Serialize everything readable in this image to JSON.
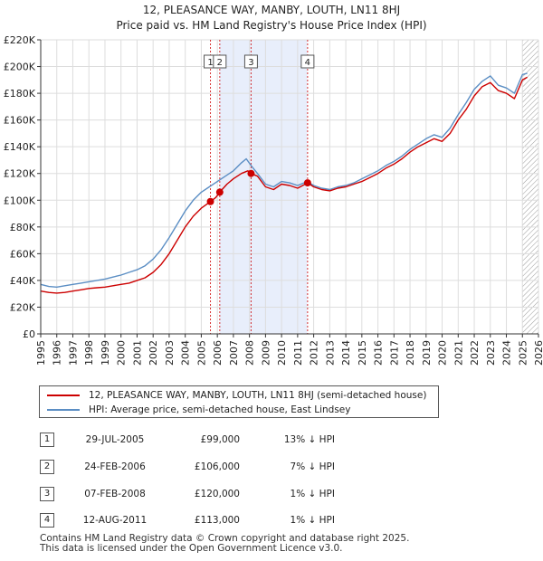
{
  "title": "12, PLEASANCE WAY, MANBY, LOUTH, LN11 8HJ",
  "subtitle": "Price paid vs. HM Land Registry's House Price Index (HPI)",
  "chart_data": {
    "type": "line",
    "xlim": [
      1995,
      2026
    ],
    "ylim": [
      0,
      220000
    ],
    "x_ticks": [
      1995,
      1996,
      1997,
      1998,
      1999,
      2000,
      2001,
      2002,
      2003,
      2004,
      2005,
      2006,
      2007,
      2008,
      2009,
      2010,
      2011,
      2012,
      2013,
      2014,
      2015,
      2016,
      2017,
      2018,
      2019,
      2020,
      2021,
      2022,
      2023,
      2024,
      2025,
      2026
    ],
    "y_ticks": [
      {
        "value": 0,
        "label": "£0"
      },
      {
        "value": 20000,
        "label": "£20K"
      },
      {
        "value": 40000,
        "label": "£40K"
      },
      {
        "value": 60000,
        "label": "£60K"
      },
      {
        "value": 80000,
        "label": "£80K"
      },
      {
        "value": 100000,
        "label": "£100K"
      },
      {
        "value": 120000,
        "label": "£120K"
      },
      {
        "value": 140000,
        "label": "£140K"
      },
      {
        "value": 160000,
        "label": "£160K"
      },
      {
        "value": 180000,
        "label": "£180K"
      },
      {
        "value": 200000,
        "label": "£200K"
      },
      {
        "value": 220000,
        "label": "£220K"
      }
    ],
    "grid": true,
    "highlight_span": [
      2006.15,
      2011.6
    ],
    "future_hatch_from": 2025.0,
    "series": [
      {
        "name": "12, PLEASANCE WAY, MANBY, LOUTH, LN11 8HJ (semi-detached house)",
        "color": "#cc0000",
        "points": [
          [
            1995.0,
            32000
          ],
          [
            1995.5,
            31000
          ],
          [
            1996.0,
            30500
          ],
          [
            1996.5,
            31000
          ],
          [
            1997.0,
            32000
          ],
          [
            1997.5,
            33000
          ],
          [
            1998.0,
            34000
          ],
          [
            1998.5,
            34500
          ],
          [
            1999.0,
            35000
          ],
          [
            1999.5,
            36000
          ],
          [
            2000.0,
            37000
          ],
          [
            2000.5,
            38000
          ],
          [
            2001.0,
            40000
          ],
          [
            2001.5,
            42000
          ],
          [
            2002.0,
            46000
          ],
          [
            2002.5,
            52000
          ],
          [
            2003.0,
            60000
          ],
          [
            2003.5,
            70000
          ],
          [
            2004.0,
            80000
          ],
          [
            2004.5,
            88000
          ],
          [
            2005.0,
            94000
          ],
          [
            2005.57,
            99000
          ],
          [
            2005.9,
            102000
          ],
          [
            2006.15,
            106000
          ],
          [
            2006.6,
            112000
          ],
          [
            2007.0,
            116000
          ],
          [
            2007.5,
            120000
          ],
          [
            2007.9,
            122000
          ],
          [
            2008.1,
            120000
          ],
          [
            2008.5,
            118000
          ],
          [
            2009.0,
            110000
          ],
          [
            2009.5,
            108000
          ],
          [
            2010.0,
            112000
          ],
          [
            2010.5,
            111000
          ],
          [
            2011.0,
            109000
          ],
          [
            2011.62,
            113000
          ],
          [
            2012.0,
            110000
          ],
          [
            2012.5,
            108000
          ],
          [
            2013.0,
            107000
          ],
          [
            2013.5,
            109000
          ],
          [
            2014.0,
            110000
          ],
          [
            2014.5,
            112000
          ],
          [
            2015.0,
            114000
          ],
          [
            2015.5,
            117000
          ],
          [
            2016.0,
            120000
          ],
          [
            2016.5,
            124000
          ],
          [
            2017.0,
            127000
          ],
          [
            2017.5,
            131000
          ],
          [
            2018.0,
            136000
          ],
          [
            2018.5,
            140000
          ],
          [
            2019.0,
            143000
          ],
          [
            2019.5,
            146000
          ],
          [
            2020.0,
            144000
          ],
          [
            2020.5,
            150000
          ],
          [
            2021.0,
            160000
          ],
          [
            2021.5,
            168000
          ],
          [
            2022.0,
            178000
          ],
          [
            2022.5,
            185000
          ],
          [
            2023.0,
            188000
          ],
          [
            2023.5,
            182000
          ],
          [
            2024.0,
            180000
          ],
          [
            2024.5,
            176000
          ],
          [
            2025.0,
            190000
          ],
          [
            2025.3,
            192000
          ]
        ]
      },
      {
        "name": "HPI: Average price, semi-detached house, East Lindsey",
        "color": "#5b8ec4",
        "points": [
          [
            1995.0,
            37000
          ],
          [
            1995.5,
            35500
          ],
          [
            1996.0,
            35000
          ],
          [
            1996.5,
            36000
          ],
          [
            1997.0,
            37000
          ],
          [
            1997.5,
            38000
          ],
          [
            1998.0,
            39000
          ],
          [
            1998.5,
            40000
          ],
          [
            1999.0,
            41000
          ],
          [
            1999.5,
            42500
          ],
          [
            2000.0,
            44000
          ],
          [
            2000.5,
            46000
          ],
          [
            2001.0,
            48000
          ],
          [
            2001.5,
            51000
          ],
          [
            2002.0,
            56000
          ],
          [
            2002.5,
            63000
          ],
          [
            2003.0,
            72000
          ],
          [
            2003.5,
            82000
          ],
          [
            2004.0,
            92000
          ],
          [
            2004.5,
            100000
          ],
          [
            2005.0,
            106000
          ],
          [
            2005.5,
            110000
          ],
          [
            2006.0,
            114000
          ],
          [
            2006.5,
            118000
          ],
          [
            2007.0,
            122000
          ],
          [
            2007.5,
            128000
          ],
          [
            2007.8,
            131000
          ],
          [
            2008.1,
            126000
          ],
          [
            2008.5,
            120000
          ],
          [
            2009.0,
            112000
          ],
          [
            2009.5,
            110000
          ],
          [
            2010.0,
            114000
          ],
          [
            2010.5,
            113000
          ],
          [
            2011.0,
            111000
          ],
          [
            2011.6,
            114000
          ],
          [
            2012.0,
            111000
          ],
          [
            2012.5,
            109000
          ],
          [
            2013.0,
            108000
          ],
          [
            2013.5,
            110000
          ],
          [
            2014.0,
            111000
          ],
          [
            2014.5,
            113000
          ],
          [
            2015.0,
            116000
          ],
          [
            2015.5,
            119000
          ],
          [
            2016.0,
            122000
          ],
          [
            2016.5,
            126000
          ],
          [
            2017.0,
            129000
          ],
          [
            2017.5,
            133000
          ],
          [
            2018.0,
            138000
          ],
          [
            2018.5,
            142000
          ],
          [
            2019.0,
            146000
          ],
          [
            2019.5,
            149000
          ],
          [
            2020.0,
            147000
          ],
          [
            2020.5,
            154000
          ],
          [
            2021.0,
            164000
          ],
          [
            2021.5,
            173000
          ],
          [
            2022.0,
            183000
          ],
          [
            2022.5,
            189000
          ],
          [
            2023.0,
            193000
          ],
          [
            2023.5,
            186000
          ],
          [
            2024.0,
            184000
          ],
          [
            2024.5,
            180000
          ],
          [
            2025.0,
            194000
          ],
          [
            2025.3,
            195000
          ]
        ]
      }
    ],
    "sales": [
      {
        "label": "1",
        "x": 2005.57,
        "value": 99000
      },
      {
        "label": "2",
        "x": 2006.15,
        "value": 106000
      },
      {
        "label": "3",
        "x": 2008.1,
        "value": 120000
      },
      {
        "label": "4",
        "x": 2011.62,
        "value": 113000
      }
    ]
  },
  "legend": {
    "property_label": "12, PLEASANCE WAY, MANBY, LOUTH, LN11 8HJ (semi-detached house)",
    "hpi_label": "HPI: Average price, semi-detached house, East Lindsey",
    "property_color": "#cc0000",
    "hpi_color": "#5b8ec4"
  },
  "sales_table": [
    {
      "num": "1",
      "date": "29-JUL-2005",
      "price": "£99,000",
      "hpi": "13% ↓ HPI"
    },
    {
      "num": "2",
      "date": "24-FEB-2006",
      "price": "£106,000",
      "hpi": "7% ↓ HPI"
    },
    {
      "num": "3",
      "date": "07-FEB-2008",
      "price": "£120,000",
      "hpi": "1% ↓ HPI"
    },
    {
      "num": "4",
      "date": "12-AUG-2011",
      "price": "£113,000",
      "hpi": "1% ↓ HPI"
    }
  ],
  "footer": {
    "line1": "Contains HM Land Registry data © Crown copyright and database right 2025.",
    "line2": "This data is licensed under the Open Government Licence v3.0."
  }
}
